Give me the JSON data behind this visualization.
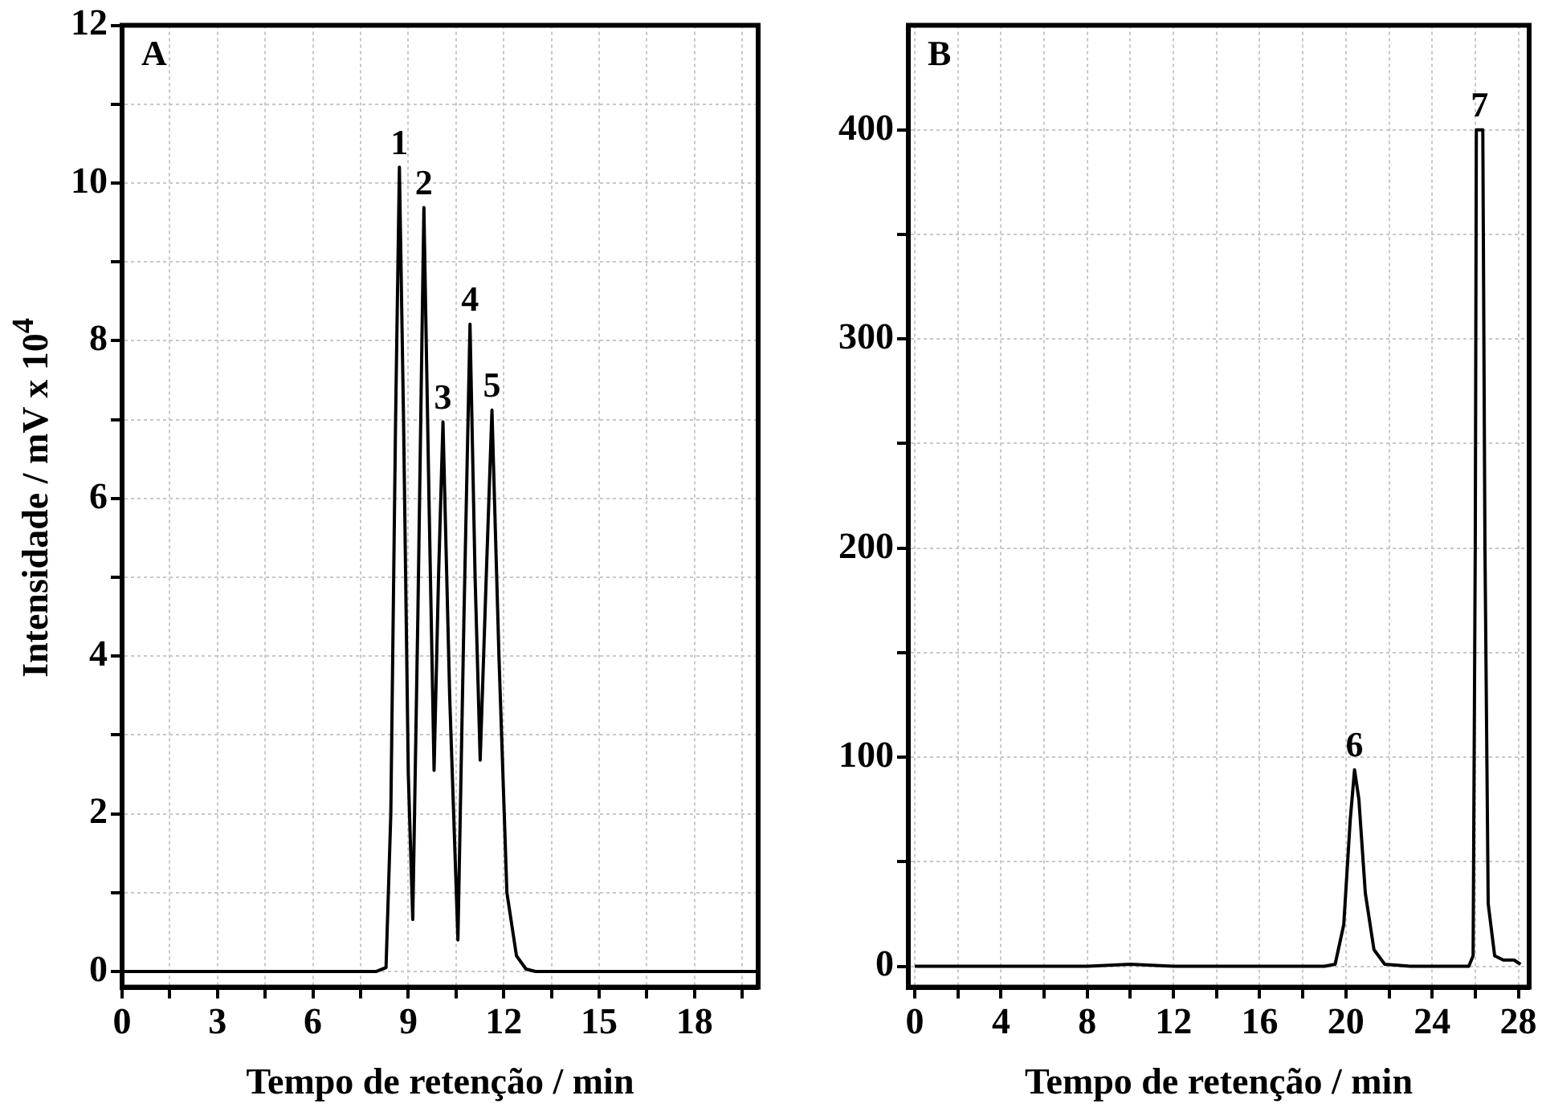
{
  "chart_data": [
    {
      "type": "line",
      "xlabel": "Tempo de retenção / min",
      "ylabel": "Intensidade / mV x 10$^{4}$",
      "xlim": [
        0,
        20
      ],
      "ylim": [
        -0.2,
        12
      ],
      "grid": true,
      "xticks": [
        0,
        {
          "value": 1.5,
          "label": null
        },
        3,
        {
          "value": 4.5,
          "label": null
        },
        6,
        {
          "value": 7.5,
          "label": null
        },
        9,
        {
          "value": 10.5,
          "label": null
        },
        12,
        {
          "value": 13.5,
          "label": null
        },
        15,
        {
          "value": 16.5,
          "label": null
        },
        18,
        {
          "value": 19.5,
          "label": null
        }
      ],
      "yticks": [
        0,
        {
          "value": 1,
          "label": null
        },
        2,
        {
          "value": 3,
          "label": null
        },
        4,
        {
          "value": 5,
          "label": null
        },
        6,
        {
          "value": 7,
          "label": null
        },
        8,
        {
          "value": 9,
          "label": null
        },
        10,
        {
          "value": 11,
          "label": null
        },
        12
      ],
      "series": [
        {
          "color": "#000000",
          "x": [
            0,
            2,
            4,
            6,
            8,
            8.3,
            8.45,
            8.6,
            8.72,
            8.85,
            9.0,
            9.14,
            9.3,
            9.49,
            9.65,
            9.81,
            9.95,
            10.09,
            10.3,
            10.56,
            10.75,
            10.94,
            11.1,
            11.26,
            11.45,
            11.63,
            11.85,
            12.1,
            12.4,
            12.7,
            13,
            15,
            18,
            20
          ],
          "values": [
            0,
            0,
            0,
            0,
            0,
            0.05,
            2,
            7,
            10.2,
            7,
            2.5,
            0.66,
            4.5,
            9.69,
            6,
            2.55,
            5,
            6.97,
            3.5,
            0.4,
            4.5,
            8.21,
            5,
            2.68,
            5,
            7.12,
            4,
            1,
            0.2,
            0.03,
            0,
            0,
            0,
            0
          ]
        }
      ],
      "annotations": [
        "A",
        {
          "text": "1",
          "x": 8.72,
          "y": 10.2
        },
        {
          "text": "2",
          "x": 9.49,
          "y": 9.69
        },
        {
          "text": "3",
          "x": 10.09,
          "y": 6.97
        },
        {
          "text": "4",
          "x": 10.94,
          "y": 8.21
        },
        {
          "text": "5",
          "x": 11.63,
          "y": 7.12
        }
      ]
    },
    {
      "type": "line",
      "xlabel": "Tempo de retenção / min",
      "xlim": [
        -0.3,
        28.5
      ],
      "ylim": [
        -10,
        450
      ],
      "grid": true,
      "xticks": [
        0,
        {
          "value": 2,
          "label": null
        },
        4,
        {
          "value": 6,
          "label": null
        },
        8,
        {
          "value": 10,
          "label": null
        },
        12,
        {
          "value": 14,
          "label": null
        },
        16,
        {
          "value": 18,
          "label": null
        },
        20,
        {
          "value": 22,
          "label": null
        },
        24,
        {
          "value": 26,
          "label": null
        },
        28
      ],
      "yticks": [
        0,
        {
          "value": 50,
          "label": null
        },
        100,
        {
          "value": 150,
          "label": null
        },
        200,
        {
          "value": 250,
          "label": null
        },
        300,
        {
          "value": 350,
          "label": null
        },
        400
      ],
      "series": [
        {
          "color": "#000000",
          "x": [
            0,
            4,
            8,
            10,
            12,
            16,
            19,
            19.5,
            19.9,
            20.2,
            20.4,
            20.6,
            20.9,
            21.3,
            21.8,
            23,
            25.7,
            25.9,
            26.0,
            26.05,
            26.35,
            26.45,
            26.6,
            26.9,
            27.3,
            27.8,
            28.1
          ],
          "values": [
            0,
            0,
            0,
            1,
            0,
            0,
            0,
            1,
            20,
            70,
            94,
            80,
            35,
            8,
            1,
            0,
            0,
            5,
            200,
            400,
            400,
            200,
            30,
            5,
            3,
            3,
            1
          ]
        }
      ],
      "annotations": [
        "B",
        {
          "text": "6",
          "x": 20.4,
          "y": 94
        },
        {
          "text": "7",
          "x": 26.2,
          "y": 400
        }
      ]
    }
  ]
}
